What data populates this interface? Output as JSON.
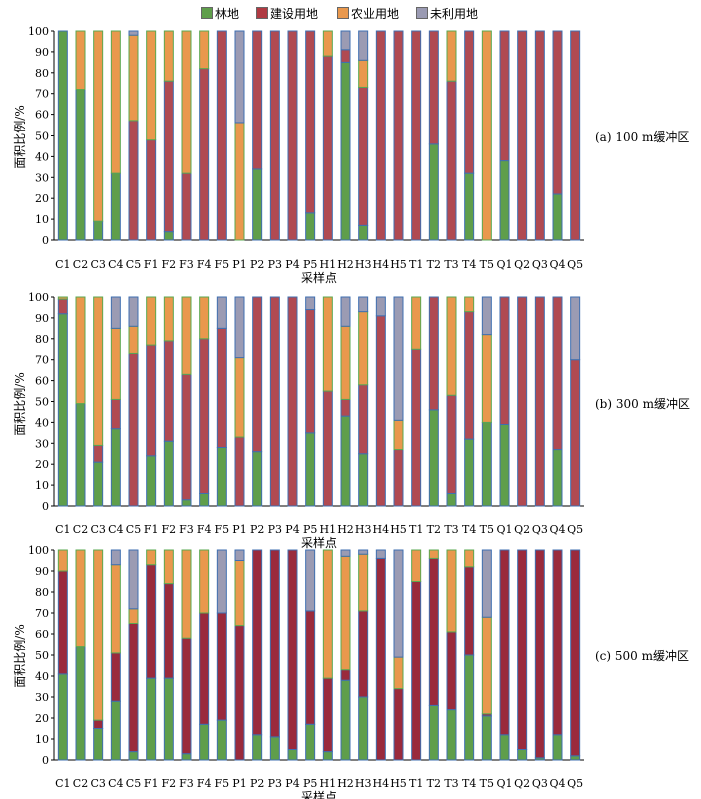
{
  "chart_data": {
    "type": "bar",
    "stacked": true,
    "legend": {
      "placement": "top-center",
      "items": [
        {
          "name": "林地",
          "color": "#5f9e4b"
        },
        {
          "name": "建设用地",
          "color": "#b03a42"
        },
        {
          "name": "农业用地",
          "color": "#e9984d"
        },
        {
          "name": "未利用地",
          "color": "#9b9bb3"
        }
      ]
    },
    "categories": [
      "C1",
      "C2",
      "C3",
      "C4",
      "C5",
      "F1",
      "F2",
      "F3",
      "F4",
      "F5",
      "P1",
      "P2",
      "P3",
      "P4",
      "P5",
      "H1",
      "H2",
      "H3",
      "H4",
      "H5",
      "T1",
      "T2",
      "T3",
      "T4",
      "T5",
      "Q1",
      "Q2",
      "Q3",
      "Q4",
      "Q5"
    ],
    "yticks": [
      "0",
      "10",
      "20",
      "30",
      "40",
      "50",
      "60",
      "70",
      "80",
      "90",
      "100"
    ],
    "ylim": [
      0,
      100
    ],
    "xlabel": "采样点",
    "ylabel": "面积比例/%",
    "panels": [
      {
        "caption": "(a) 100 m缓冲区",
        "colors": {
          "forest": "#5f9e4b",
          "construction": "#b04a52",
          "agriculture": "#e9984d",
          "unused": "#9b9bb3"
        },
        "series": [
          {
            "name": "林地",
            "values": [
              100,
              72,
              9,
              32,
              0,
              0,
              4,
              0,
              0,
              0,
              0,
              34,
              0,
              0,
              13,
              0,
              85,
              7,
              0,
              0,
              0,
              46,
              0,
              32,
              0,
              38,
              0,
              0,
              22,
              0
            ]
          },
          {
            "name": "建设用地",
            "values": [
              0,
              0,
              0,
              0,
              57,
              48,
              72,
              32,
              82,
              100,
              0,
              66,
              100,
              100,
              87,
              88,
              6,
              66,
              100,
              100,
              100,
              54,
              76,
              68,
              0,
              62,
              100,
              100,
              78,
              100
            ]
          },
          {
            "name": "农业用地",
            "values": [
              0,
              28,
              91,
              68,
              41,
              52,
              24,
              68,
              18,
              0,
              56,
              0,
              0,
              0,
              0,
              12,
              0,
              13,
              0,
              0,
              0,
              0,
              24,
              0,
              100,
              0,
              0,
              0,
              0,
              0
            ]
          },
          {
            "name": "未利用地",
            "values": [
              0,
              0,
              0,
              0,
              2,
              0,
              0,
              0,
              0,
              0,
              44,
              0,
              0,
              0,
              0,
              0,
              9,
              14,
              0,
              0,
              0,
              0,
              0,
              0,
              0,
              0,
              0,
              0,
              0,
              0
            ]
          }
        ]
      },
      {
        "caption": "(b) 300 m缓冲区",
        "colors": {
          "forest": "#5f9e4b",
          "construction": "#b04a52",
          "agriculture": "#e9984d",
          "unused": "#9b9bb3"
        },
        "series": [
          {
            "name": "林地",
            "values": [
              92,
              49,
              21,
              37,
              0,
              24,
              31,
              3,
              6,
              28,
              0,
              26,
              0,
              0,
              35,
              0,
              43,
              25,
              0,
              0,
              0,
              46,
              6,
              32,
              40,
              39,
              0,
              0,
              27,
              0
            ]
          },
          {
            "name": "建设用地",
            "values": [
              7,
              0,
              8,
              14,
              73,
              53,
              48,
              60,
              74,
              57,
              33,
              74,
              100,
              100,
              59,
              55,
              8,
              33,
              91,
              27,
              75,
              54,
              47,
              61,
              0,
              61,
              100,
              100,
              73,
              70
            ]
          },
          {
            "name": "农业用地",
            "values": [
              1,
              51,
              71,
              34,
              13,
              23,
              21,
              37,
              20,
              0,
              38,
              0,
              0,
              0,
              0,
              45,
              35,
              35,
              0,
              14,
              25,
              0,
              47,
              7,
              42,
              0,
              0,
              0,
              0,
              0
            ]
          },
          {
            "name": "未利用地",
            "values": [
              0,
              0,
              0,
              15,
              14,
              0,
              0,
              0,
              0,
              15,
              29,
              0,
              0,
              0,
              6,
              0,
              14,
              7,
              9,
              59,
              0,
              0,
              0,
              0,
              18,
              0,
              0,
              0,
              0,
              30
            ]
          }
        ]
      },
      {
        "caption": "(c) 500 m缓冲区",
        "colors": {
          "forest": "#5f9e4b",
          "construction": "#9a2a3c",
          "agriculture": "#e9984d",
          "unused": "#9b9bb3"
        },
        "series": [
          {
            "name": "林地",
            "values": [
              41,
              54,
              15,
              28,
              4,
              39,
              39,
              3,
              17,
              19,
              0,
              12,
              11,
              5,
              17,
              4,
              38,
              30,
              0,
              0,
              0,
              26,
              24,
              50,
              21,
              12,
              5,
              1,
              12,
              2
            ]
          },
          {
            "name": "建设用地",
            "values": [
              49,
              0,
              4,
              23,
              61,
              54,
              45,
              55,
              53,
              51,
              64,
              88,
              89,
              95,
              54,
              35,
              5,
              41,
              96,
              34,
              85,
              70,
              37,
              42,
              1,
              88,
              95,
              99,
              88,
              98
            ]
          },
          {
            "name": "农业用地",
            "values": [
              10,
              46,
              81,
              42,
              7,
              7,
              16,
              42,
              30,
              0,
              31,
              0,
              0,
              0,
              0,
              61,
              54,
              27,
              0,
              15,
              15,
              4,
              39,
              8,
              46,
              0,
              0,
              0,
              0,
              0
            ]
          },
          {
            "name": "未利用地",
            "values": [
              0,
              0,
              0,
              7,
              28,
              0,
              0,
              0,
              0,
              30,
              5,
              0,
              0,
              0,
              29,
              0,
              3,
              2,
              4,
              51,
              0,
              0,
              0,
              0,
              32,
              0,
              0,
              0,
              0,
              0
            ]
          }
        ]
      }
    ]
  }
}
